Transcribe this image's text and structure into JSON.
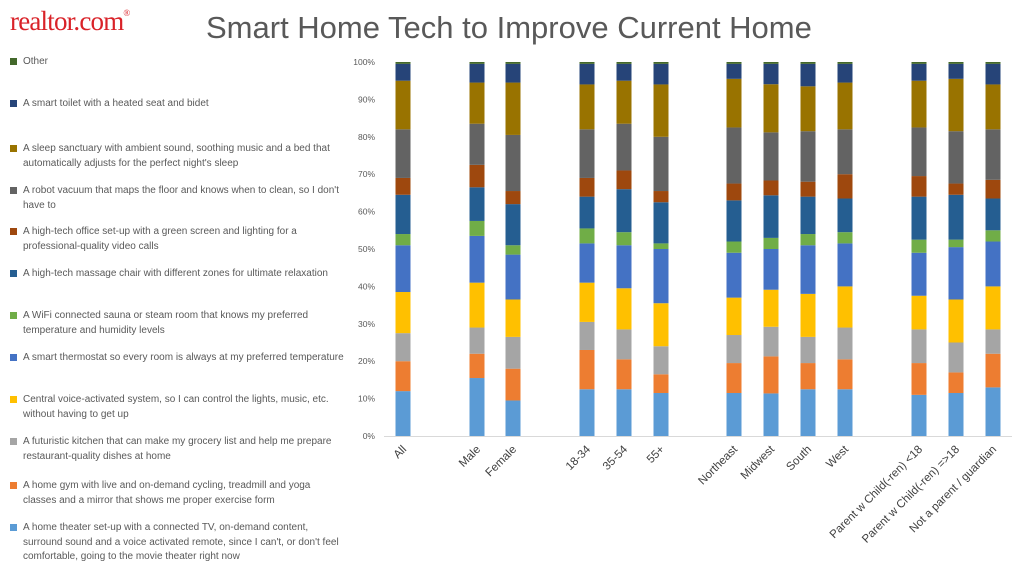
{
  "brand": {
    "name": "realtor.com",
    "mark": "®"
  },
  "chart_data": {
    "type": "bar",
    "stacked": true,
    "percent": true,
    "title": "Smart Home Tech to Improve Current Home",
    "xlabel": "",
    "ylabel": "",
    "ylim": [
      0,
      100
    ],
    "yticks": [
      "0%",
      "10%",
      "20%",
      "30%",
      "40%",
      "50%",
      "60%",
      "70%",
      "80%",
      "90%",
      "100%"
    ],
    "categories": [
      "All",
      "Male",
      "Female",
      "18-34",
      "35-54",
      "55+",
      "Northeast",
      "Midwest",
      "South",
      "West",
      "Parent w Child(-ren) <18",
      "Parent w Child(-ren) =>18",
      "Not a parent / guardian"
    ],
    "legend_position": "left",
    "series": [
      {
        "name": "A home theater set-up with a connected TV, on-demand content, surround sound and a voice activated remote, since I can't, or don't feel comfortable, going to the movie theater right now",
        "color": "#5b9bd5",
        "values": [
          12.0,
          15.5,
          9.5,
          12.5,
          12.5,
          11.5,
          11.5,
          11.5,
          12.5,
          12.5,
          11.0,
          11.5,
          13.0
        ]
      },
      {
        "name": "A home gym with live and on-demand cycling, treadmill and yoga classes and a mirror that shows me proper exercise form",
        "color": "#ed7d31",
        "values": [
          8.0,
          6.5,
          8.5,
          10.5,
          8.0,
          5.0,
          8.0,
          10.0,
          7.0,
          8.0,
          8.5,
          5.5,
          9.0
        ]
      },
      {
        "name": "A futuristic kitchen that can make my grocery list and help me prepare restaurant-quality dishes at home",
        "color": "#a5a5a5",
        "values": [
          7.5,
          7.0,
          8.5,
          7.5,
          8.0,
          7.5,
          7.5,
          8.0,
          7.0,
          8.5,
          9.0,
          8.0,
          6.5
        ]
      },
      {
        "name": "Central voice-activated system, so I can control the lights, music, etc. without having to get up",
        "color": "#ffc000",
        "values": [
          11.0,
          12.0,
          10.0,
          10.5,
          11.0,
          11.5,
          10.0,
          10.0,
          11.5,
          11.0,
          9.0,
          11.5,
          11.5
        ]
      },
      {
        "name": "A smart thermostat so every room is always at my preferred temperature",
        "color": "#4472c4",
        "values": [
          12.5,
          12.5,
          12.0,
          10.5,
          11.5,
          14.5,
          12.0,
          11.0,
          13.0,
          11.5,
          11.5,
          14.0,
          12.0
        ]
      },
      {
        "name": "A WiFi connected sauna or steam room that knows my preferred temperature and humidity levels",
        "color": "#70ad47",
        "values": [
          3.0,
          4.0,
          2.5,
          4.0,
          3.5,
          1.5,
          3.0,
          3.0,
          3.0,
          3.0,
          3.5,
          2.0,
          3.0
        ]
      },
      {
        "name": "A high-tech massage chair with different zones for ultimate relaxation",
        "color": "#255e91",
        "values": [
          10.5,
          9.0,
          11.0,
          8.5,
          11.5,
          11.0,
          11.0,
          11.5,
          10.0,
          9.0,
          11.5,
          12.0,
          8.5
        ]
      },
      {
        "name": "A high-tech office set-up with a green screen and lighting for a professional-quality video calls",
        "color": "#9e480e",
        "values": [
          4.5,
          6.0,
          3.5,
          5.0,
          5.0,
          3.0,
          4.5,
          4.0,
          4.0,
          6.5,
          5.5,
          3.0,
          5.0
        ]
      },
      {
        "name": "A robot vacuum that maps the floor and knows when to clean, so I don't have to",
        "color": "#636363",
        "values": [
          13.0,
          11.0,
          15.0,
          13.0,
          12.5,
          14.5,
          15.0,
          13.0,
          13.5,
          12.0,
          13.0,
          14.0,
          13.5
        ]
      },
      {
        "name": "A sleep sanctuary with ambient sound, soothing music and a bed that automatically adjusts for the perfect night's sleep",
        "color": "#997300",
        "values": [
          13.0,
          11.0,
          14.0,
          12.0,
          11.5,
          14.0,
          13.0,
          13.0,
          12.0,
          12.5,
          12.5,
          14.0,
          12.0
        ]
      },
      {
        "name": "A smart toilet with a heated seat and bidet",
        "color": "#264478",
        "values": [
          4.5,
          5.0,
          5.0,
          5.5,
          4.5,
          5.5,
          4.0,
          5.5,
          6.0,
          5.0,
          4.5,
          4.0,
          5.5
        ]
      },
      {
        "name": "Other",
        "color": "#43682b",
        "values": [
          0.5,
          0.5,
          0.5,
          0.5,
          0.5,
          0.5,
          0.5,
          0.5,
          0.5,
          0.5,
          0.5,
          0.5,
          0.5
        ]
      }
    ]
  }
}
